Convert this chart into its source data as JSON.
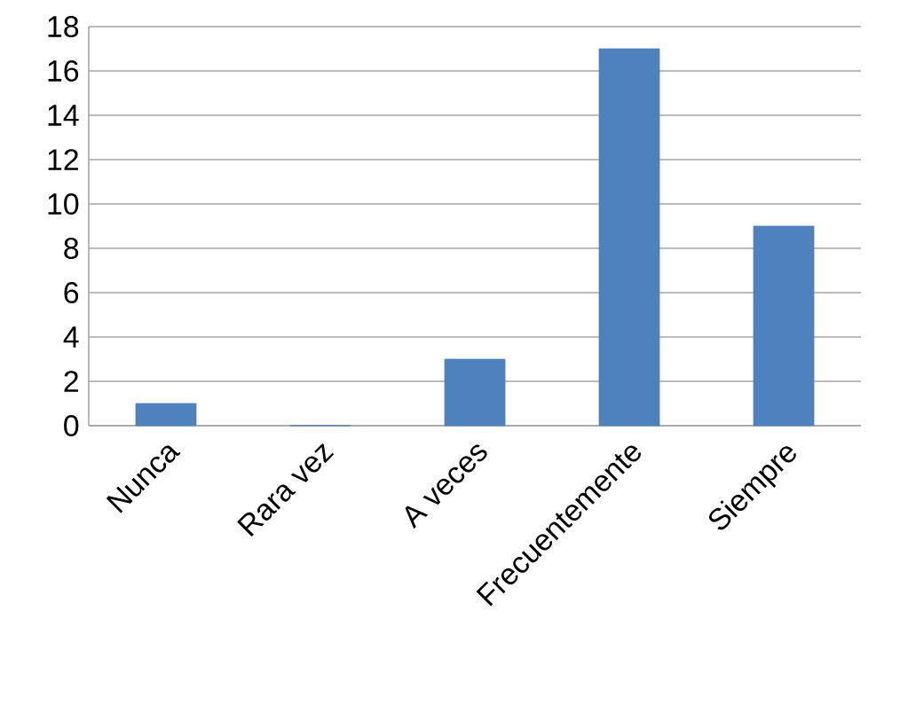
{
  "chart_data": {
    "type": "bar",
    "categories": [
      "Nunca",
      "Rara vez",
      "A veces",
      "Frecuentemente",
      "Siempre"
    ],
    "values": [
      1,
      0,
      3,
      17,
      9
    ],
    "color": "#4f81bd",
    "ylim": [
      0,
      18
    ],
    "yticks": [
      0,
      2,
      4,
      6,
      8,
      10,
      12,
      14,
      16,
      18
    ],
    "grid": "y"
  }
}
